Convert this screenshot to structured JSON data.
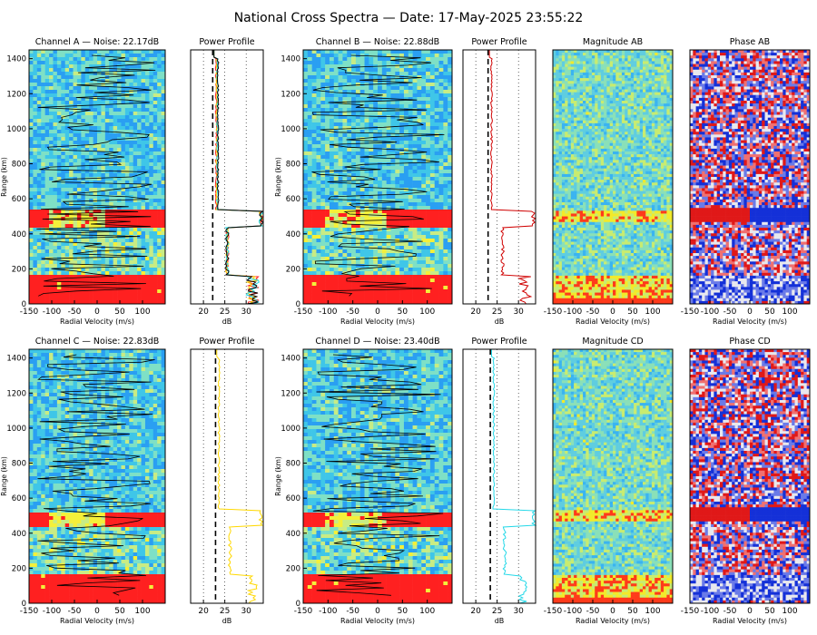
{
  "title": "National Cross Spectra — Date: 17-May-2025 23:55:22",
  "colors": {
    "spec": [
      "#1a5cff",
      "#2a9ff2",
      "#3fc6e8",
      "#7ee0c6",
      "#c8ec84",
      "#f4f03a",
      "#ff2020"
    ],
    "mag": [
      "#3ab4f0",
      "#5fcde0",
      "#8ae0b8",
      "#c8ec70",
      "#f2ea2a",
      "#ff3a1a"
    ],
    "phase": [
      "#1430d8",
      "#6a7ae8",
      "#e8e8ee",
      "#f07070",
      "#e01818"
    ]
  },
  "chart_data": [
    {
      "type": "heatmap",
      "title": "Channel A — Noise: 22.17dB",
      "xlabel": "Radial Velocity (m/s)",
      "ylabel": "Range (km)",
      "xlim": [
        -150,
        150
      ],
      "ylim": [
        0,
        1450
      ],
      "xticks": [
        "-150",
        "-100",
        "-50",
        "0",
        "50",
        "100"
      ],
      "yticks": [
        "0",
        "200",
        "400",
        "600",
        "800",
        "1000",
        "1200",
        "1400"
      ],
      "bands": [
        {
          "range_km": [
            440,
            530
          ],
          "level": "high"
        },
        {
          "range_km": [
            0,
            160
          ],
          "level": "high"
        }
      ]
    },
    {
      "type": "line",
      "title": "Power Profile",
      "xlabel": "dB",
      "xlim": [
        17,
        34
      ],
      "xticks": [
        "20",
        "25",
        "30"
      ],
      "ylim": [
        0,
        1450
      ],
      "noise_level_db": 22.17,
      "series_colors": [
        "#ff2020",
        "#ffd800",
        "#22d8e8",
        "#000000"
      ]
    },
    {
      "type": "heatmap",
      "title": "Channel B — Noise: 22.88dB",
      "xlabel": "Radial Velocity (m/s)",
      "ylabel": "Range (km)",
      "xlim": [
        -150,
        150
      ],
      "ylim": [
        0,
        1450
      ],
      "xticks": [
        "-150",
        "-100",
        "-50",
        "0",
        "50",
        "100"
      ],
      "yticks": [
        "0",
        "200",
        "400",
        "600",
        "800",
        "1000",
        "1200",
        "1400"
      ],
      "bands": [
        {
          "range_km": [
            440,
            530
          ],
          "level": "high"
        },
        {
          "range_km": [
            0,
            160
          ],
          "level": "high"
        }
      ]
    },
    {
      "type": "line",
      "title": "Power Profile",
      "xlabel": "dB",
      "xlim": [
        17,
        34
      ],
      "xticks": [
        "20",
        "25",
        "30"
      ],
      "ylim": [
        0,
        1450
      ],
      "noise_level_db": 22.88,
      "series_colors": [
        "#d00000"
      ]
    },
    {
      "type": "heatmap",
      "title": "Magnitude AB",
      "xlabel": "Radial Velocity (m/s)",
      "xlim": [
        -150,
        150
      ],
      "ylim": [
        0,
        1450
      ],
      "xticks": [
        "-150",
        "-100",
        "-50",
        "0",
        "50",
        "100"
      ]
    },
    {
      "type": "heatmap",
      "title": "Phase AB",
      "xlabel": "Radial Velocity (m/s)",
      "xlim": [
        -150,
        150
      ],
      "ylim": [
        0,
        1450
      ],
      "xticks": [
        "-150",
        "-100",
        "-50",
        "0",
        "50",
        "100"
      ]
    },
    {
      "type": "heatmap",
      "title": "Channel C — Noise: 22.83dB",
      "xlabel": "Radial Velocity (m/s)",
      "ylabel": "Range (km)",
      "xlim": [
        -150,
        150
      ],
      "ylim": [
        0,
        1450
      ],
      "xticks": [
        "-150",
        "-100",
        "-50",
        "0",
        "50",
        "100"
      ],
      "yticks": [
        "0",
        "200",
        "400",
        "600",
        "800",
        "1000",
        "1200",
        "1400"
      ],
      "bands": [
        {
          "range_km": [
            440,
            510
          ],
          "level": "high"
        },
        {
          "range_km": [
            0,
            160
          ],
          "level": "high"
        }
      ]
    },
    {
      "type": "line",
      "title": "Power Profile",
      "xlabel": "dB",
      "xlim": [
        17,
        34
      ],
      "xticks": [
        "20",
        "25",
        "30"
      ],
      "ylim": [
        0,
        1450
      ],
      "noise_level_db": 22.83,
      "series_colors": [
        "#ffd800"
      ]
    },
    {
      "type": "heatmap",
      "title": "Channel D — Noise: 23.40dB",
      "xlabel": "Radial Velocity (m/s)",
      "ylabel": "Range (km)",
      "xlim": [
        -150,
        150
      ],
      "ylim": [
        0,
        1450
      ],
      "xticks": [
        "-150",
        "-100",
        "-50",
        "0",
        "50",
        "100"
      ],
      "yticks": [
        "0",
        "200",
        "400",
        "600",
        "800",
        "1000",
        "1200",
        "1400"
      ],
      "bands": [
        {
          "range_km": [
            440,
            510
          ],
          "level": "high"
        },
        {
          "range_km": [
            0,
            160
          ],
          "level": "high"
        }
      ]
    },
    {
      "type": "line",
      "title": "Power Profile",
      "xlabel": "dB",
      "xlim": [
        17,
        34
      ],
      "xticks": [
        "20",
        "25",
        "30"
      ],
      "ylim": [
        0,
        1450
      ],
      "noise_level_db": 23.4,
      "series_colors": [
        "#22d8e8"
      ]
    },
    {
      "type": "heatmap",
      "title": "Magnitude CD",
      "xlabel": "Radial Velocity (m/s)",
      "xlim": [
        -150,
        150
      ],
      "ylim": [
        0,
        1450
      ],
      "xticks": [
        "-150",
        "-100",
        "-50",
        "0",
        "50",
        "100"
      ]
    },
    {
      "type": "heatmap",
      "title": "Phase CD",
      "xlabel": "Radial Velocity (m/s)",
      "xlim": [
        -150,
        150
      ],
      "ylim": [
        0,
        1450
      ],
      "xticks": [
        "-150",
        "-100",
        "-50",
        "0",
        "50",
        "100"
      ]
    }
  ]
}
